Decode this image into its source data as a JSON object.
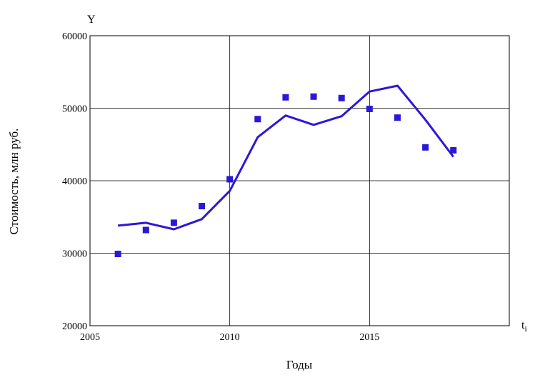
{
  "chart_data": {
    "type": "line",
    "title": "",
    "xlabel": "Годы",
    "ylabel": "Стоимость, млн руб.",
    "x_corner_label": "t",
    "x_corner_subscript": "i",
    "y_corner_label": "Y",
    "xlim": [
      2005,
      2020
    ],
    "ylim": [
      20000,
      60000
    ],
    "x_ticks": [
      2005,
      2010,
      2015
    ],
    "y_ticks": [
      20000,
      30000,
      40000,
      50000,
      60000
    ],
    "grid": true,
    "legend": "none",
    "series": [
      {
        "type": "line",
        "color": "#2b18d6",
        "x": [
          2006,
          2007,
          2008,
          2009,
          2010,
          2011,
          2012,
          2013,
          2014,
          2015,
          2016,
          2017,
          2018
        ],
        "y": [
          33800,
          34200,
          33300,
          34700,
          38600,
          46000,
          49000,
          47700,
          48900,
          52300,
          53100,
          48400,
          43300
        ]
      },
      {
        "type": "scatter",
        "marker": "square",
        "color": "#2b18d6",
        "x": [
          2006,
          2007,
          2008,
          2009,
          2010,
          2011,
          2012,
          2013,
          2014,
          2015,
          2016,
          2017,
          2018
        ],
        "y": [
          29900,
          33200,
          34200,
          36500,
          40200,
          48500,
          51500,
          51600,
          51400,
          49900,
          48700,
          44600,
          44200
        ]
      }
    ]
  }
}
